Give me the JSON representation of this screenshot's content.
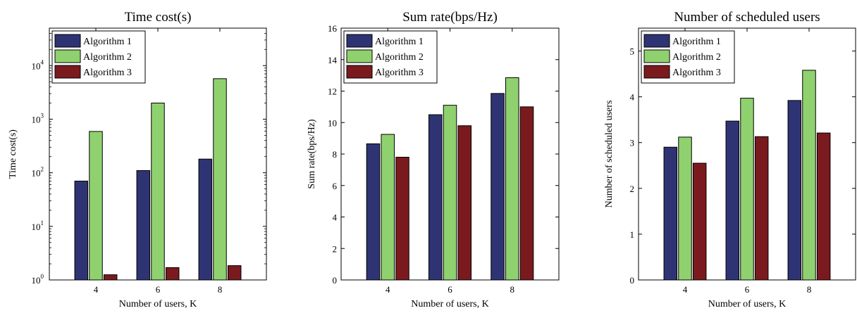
{
  "chart_data": [
    {
      "type": "bar",
      "title": "Time cost(s)",
      "xlabel": "Number of users, K",
      "ylabel": "Time cost(s)",
      "yscale": "log",
      "ylim": [
        1,
        50000
      ],
      "yticks": [
        1,
        10,
        100,
        1000,
        10000
      ],
      "yticklabels": [
        {
          "base": "10",
          "exp": "0"
        },
        {
          "base": "10",
          "exp": "1"
        },
        {
          "base": "10",
          "exp": "2"
        },
        {
          "base": "10",
          "exp": "3"
        },
        {
          "base": "10",
          "exp": "4"
        }
      ],
      "categories": [
        "4",
        "6",
        "8"
      ],
      "series": [
        {
          "name": "Algorithm 1",
          "values": [
            70,
            110,
            180
          ]
        },
        {
          "name": "Algorithm 2",
          "values": [
            590,
            2000,
            5700
          ]
        },
        {
          "name": "Algorithm 3",
          "values": [
            1.25,
            1.7,
            1.85
          ]
        }
      ],
      "legend": "top-left",
      "grid": false
    },
    {
      "type": "bar",
      "title": "Sum rate(bps/Hz)",
      "xlabel": "Number of users, K",
      "ylabel": "Sum rate(bps/Hz)",
      "yscale": "linear",
      "ylim": [
        0,
        16
      ],
      "yticks": [
        0,
        2,
        4,
        6,
        8,
        10,
        12,
        14,
        16
      ],
      "categories": [
        "4",
        "6",
        "8"
      ],
      "series": [
        {
          "name": "Algorithm 1",
          "values": [
            8.65,
            10.5,
            11.85
          ]
        },
        {
          "name": "Algorithm 2",
          "values": [
            9.25,
            11.1,
            12.85
          ]
        },
        {
          "name": "Algorithm 3",
          "values": [
            7.8,
            9.8,
            11.0
          ]
        }
      ],
      "legend": "top-left",
      "grid": false
    },
    {
      "type": "bar",
      "title": "Number of scheduled users",
      "xlabel": "Number of users, K",
      "ylabel": "Number of scheduled users",
      "yscale": "linear",
      "ylim": [
        0,
        5.5
      ],
      "yticks": [
        0,
        1,
        2,
        3,
        4,
        5
      ],
      "categories": [
        "4",
        "6",
        "8"
      ],
      "series": [
        {
          "name": "Algorithm 1",
          "values": [
            2.9,
            3.47,
            3.92
          ]
        },
        {
          "name": "Algorithm 2",
          "values": [
            3.12,
            3.97,
            4.58
          ]
        },
        {
          "name": "Algorithm 3",
          "values": [
            2.55,
            3.13,
            3.21
          ]
        }
      ],
      "legend": "top-left",
      "grid": false
    }
  ],
  "colors": [
    "#2e3473",
    "#8fd16f",
    "#7a1a1e"
  ]
}
